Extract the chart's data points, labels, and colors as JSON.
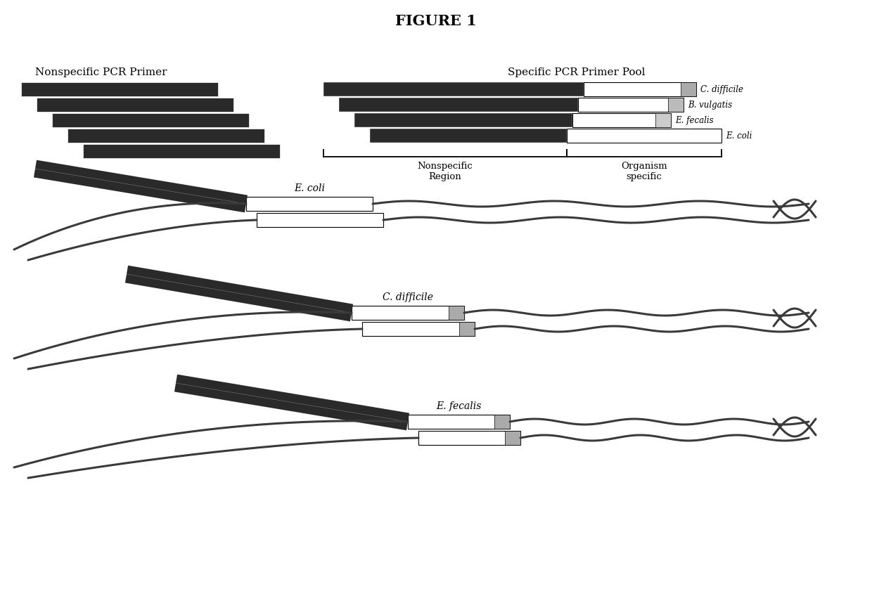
{
  "title": "FIGURE 1",
  "title_fontsize": 15,
  "background_color": "#ffffff",
  "dark_color": "#2a2a2a",
  "dark_texture": "#1a1a1a",
  "white_color": "#ffffff",
  "nonspecific_label": "Nonspecific PCR Primer",
  "specific_label": "Specific PCR Primer Pool",
  "organisms_top": [
    "C. difficile",
    "B. vulgatis",
    "E. fecalis",
    "E. coli"
  ],
  "bottom_panels": [
    {
      "label": "E. coli",
      "has_square": false,
      "sq_color": null
    },
    {
      "label": "C. difficile",
      "has_square": true,
      "sq_color": "#999999"
    },
    {
      "label": "E. fecalis",
      "has_square": true,
      "sq_color": "#aaaaaa"
    }
  ],
  "nonspecific_region_label": "Nonspecific\nRegion",
  "organism_specific_label": "Organism\nspecific"
}
